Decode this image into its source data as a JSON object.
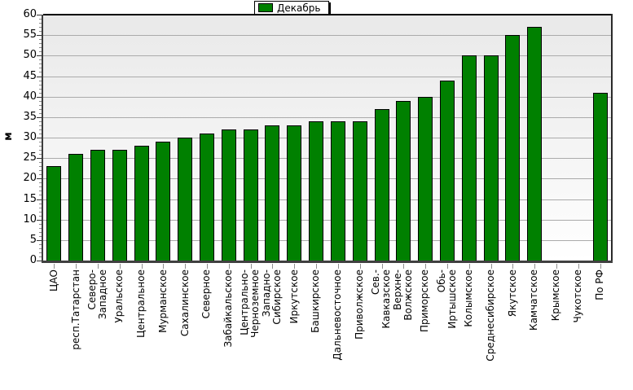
{
  "legend": {
    "label": "Декабрь",
    "swatch_color": "#008000"
  },
  "y_axis": {
    "title": "м"
  },
  "colors": {
    "bar_fill": "#008000",
    "bar_border": "#000000",
    "gridline": "#ababab",
    "axis": "#404040",
    "plot_bg_top": "#e9e9e9",
    "plot_bg_bottom": "#ffffff"
  },
  "chart_data": {
    "type": "bar",
    "title": "",
    "ylabel": "м",
    "xlabel": "",
    "ylim": [
      0,
      60
    ],
    "ytick_step": 5,
    "yticks": [
      0,
      5,
      10,
      15,
      20,
      25,
      30,
      35,
      40,
      45,
      50,
      55,
      60
    ],
    "grid": true,
    "legend_entries": [
      "Декабрь"
    ],
    "legend_position": "top-center",
    "categories": [
      "ЦАО",
      "респ.Татарстан",
      "Северо-\nЗападное",
      "Уральское",
      "Центральное",
      "Мурманское",
      "Сахалинское",
      "Северное",
      "Забайкальское",
      "Центрально-\nЧерноземное",
      "Западно-\nСибирское",
      "Иркутское",
      "Башкирское",
      "Дальневосточное",
      "Приволжское",
      "Сев.-\nКавказское",
      "Верхне-\nВолжское",
      "Приморское",
      "Обь-\nИртышское",
      "Колымское",
      "Среднесибирское",
      "Якутское",
      "Камчатское",
      "Крымское",
      "Чукотское",
      "По РФ"
    ],
    "series": [
      {
        "name": "Декабрь",
        "values": [
          23,
          26,
          27,
          27,
          28,
          29,
          30,
          31,
          32,
          32,
          33,
          33,
          34,
          34,
          34,
          37,
          39,
          40,
          44,
          50,
          50,
          55,
          57,
          null,
          null,
          41
        ]
      }
    ]
  }
}
